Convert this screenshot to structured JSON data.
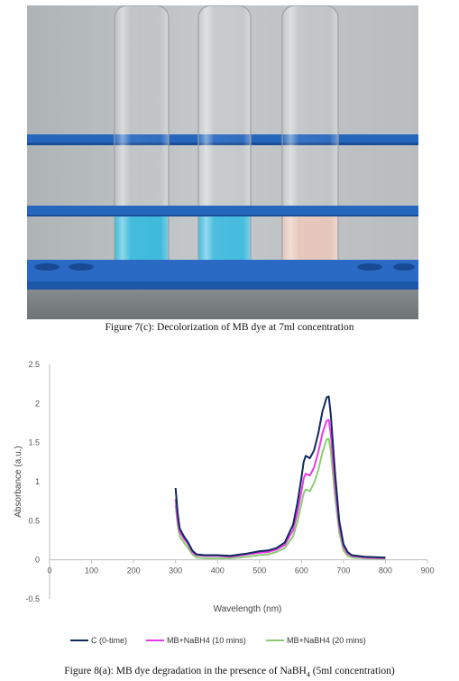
{
  "figure7": {
    "caption": "Figure 7(c): Decolorization of MB dye at 7ml concentration",
    "tube_colors": [
      "#34b6da",
      "#3cb8dc",
      "#e4c3b6"
    ],
    "rack_color": "#1f5fb8"
  },
  "figure8": {
    "caption_pre": "Figure 8(a): MB dye degradation in the presence of NaBH",
    "caption_sub": "4",
    "caption_post": " (5ml concentration)"
  },
  "chart_data": {
    "type": "line",
    "title": "",
    "xlabel": "Wavelength (nm)",
    "ylabel": "Absorbance (a.u.)",
    "xlim": [
      0,
      900
    ],
    "ylim": [
      -0.5,
      2.5
    ],
    "xticks": [
      "0",
      "100",
      "200",
      "300",
      "400",
      "500",
      "600",
      "700",
      "800",
      "900"
    ],
    "yticks": [
      "2.5",
      "2",
      "1.5",
      "1",
      "0.5",
      "0",
      "-0.5"
    ],
    "legend_position": "bottom",
    "grid": false,
    "series": [
      {
        "name": "C (0-time)",
        "color": "#0e2a5c",
        "x": [
          300,
          305,
          310,
          320,
          330,
          340,
          350,
          370,
          400,
          430,
          470,
          500,
          520,
          540,
          560,
          580,
          590,
          600,
          605,
          610,
          620,
          630,
          640,
          650,
          660,
          665,
          670,
          680,
          690,
          700,
          710,
          720,
          750,
          800
        ],
        "y": [
          0.92,
          0.6,
          0.4,
          0.3,
          0.22,
          0.12,
          0.07,
          0.06,
          0.06,
          0.05,
          0.08,
          0.11,
          0.12,
          0.15,
          0.22,
          0.45,
          0.72,
          1.05,
          1.25,
          1.33,
          1.3,
          1.4,
          1.62,
          1.9,
          2.08,
          2.09,
          1.85,
          1.1,
          0.5,
          0.2,
          0.1,
          0.06,
          0.04,
          0.03
        ]
      },
      {
        "name": "MB+NaBH4 (10 mins)",
        "color": "#e83be6",
        "x": [
          300,
          305,
          310,
          320,
          330,
          340,
          350,
          370,
          400,
          430,
          470,
          500,
          520,
          540,
          560,
          580,
          590,
          600,
          605,
          610,
          620,
          630,
          640,
          650,
          660,
          665,
          670,
          680,
          690,
          700,
          710,
          720,
          750,
          800
        ],
        "y": [
          0.78,
          0.5,
          0.36,
          0.27,
          0.2,
          0.1,
          0.06,
          0.05,
          0.05,
          0.04,
          0.07,
          0.09,
          0.1,
          0.13,
          0.19,
          0.38,
          0.6,
          0.88,
          1.04,
          1.1,
          1.08,
          1.18,
          1.38,
          1.62,
          1.78,
          1.79,
          1.6,
          0.95,
          0.43,
          0.17,
          0.08,
          0.05,
          0.03,
          0.02
        ]
      },
      {
        "name": "MB+NaBH4 (20 mins)",
        "color": "#8ecb74",
        "x": [
          300,
          305,
          310,
          320,
          330,
          340,
          350,
          370,
          400,
          430,
          470,
          500,
          520,
          540,
          560,
          580,
          590,
          600,
          605,
          610,
          620,
          630,
          640,
          650,
          660,
          665,
          670,
          680,
          690,
          700,
          710,
          720,
          750,
          800
        ],
        "y": [
          0.7,
          0.45,
          0.3,
          0.22,
          0.15,
          0.07,
          0.03,
          0.02,
          0.02,
          0.02,
          0.04,
          0.06,
          0.07,
          0.1,
          0.15,
          0.3,
          0.48,
          0.72,
          0.85,
          0.9,
          0.88,
          0.98,
          1.15,
          1.38,
          1.54,
          1.55,
          1.38,
          0.8,
          0.35,
          0.12,
          0.05,
          0.03,
          0.02,
          0.01
        ]
      }
    ]
  }
}
